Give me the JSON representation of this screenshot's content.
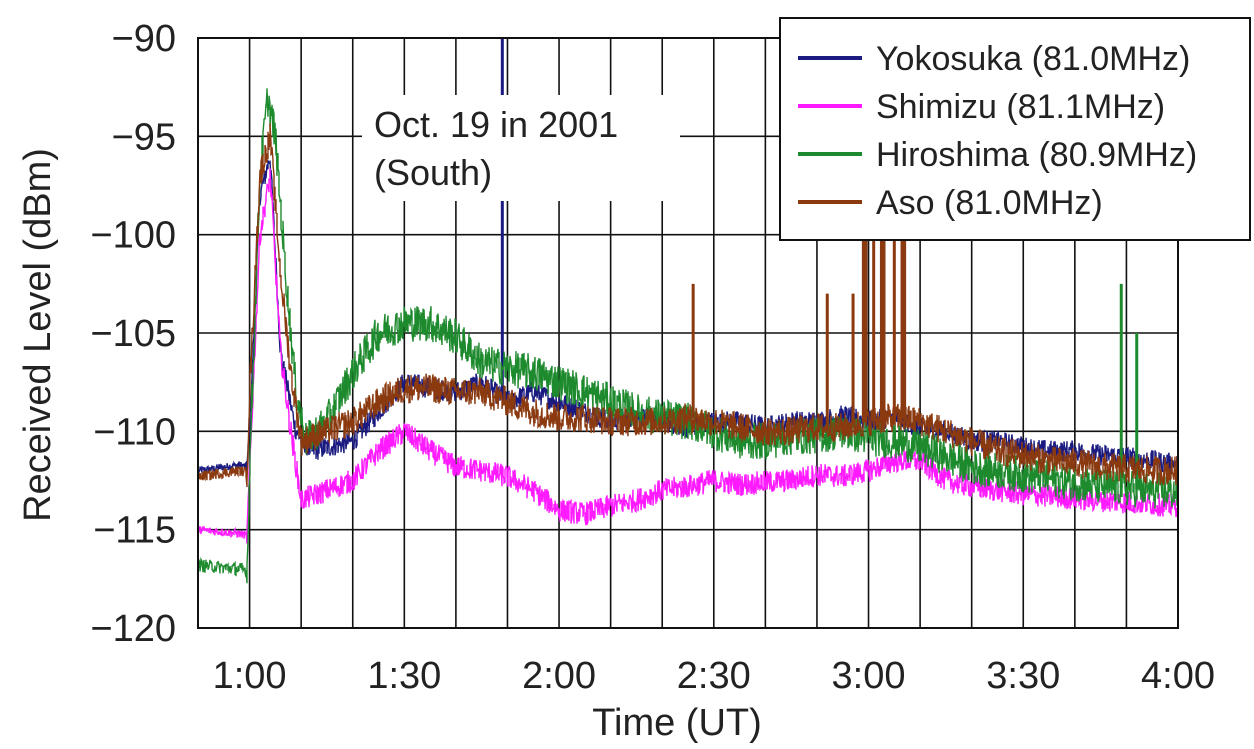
{
  "chart_data": {
    "type": "line",
    "title": "",
    "annotation": [
      "Oct. 19 in 2001",
      "(South)"
    ],
    "xlabel": "Time (UT)",
    "ylabel": "Received Level (dBm)",
    "xlim_minutes": [
      50,
      240
    ],
    "ylim": [
      -120,
      -90
    ],
    "x_ticks": [
      {
        "label": "1:00",
        "minutes": 60
      },
      {
        "label": "1:30",
        "minutes": 90
      },
      {
        "label": "2:00",
        "minutes": 120
      },
      {
        "label": "2:30",
        "minutes": 150
      },
      {
        "label": "3:00",
        "minutes": 180
      },
      {
        "label": "3:30",
        "minutes": 210
      },
      {
        "label": "4:00",
        "minutes": 240
      }
    ],
    "y_ticks": [
      {
        "label": "−90",
        "value": -90
      },
      {
        "label": "−95",
        "value": -95
      },
      {
        "label": "−100",
        "value": -100
      },
      {
        "label": "−105",
        "value": -105
      },
      {
        "label": "−110",
        "value": -110
      },
      {
        "label": "−115",
        "value": -115
      },
      {
        "label": "−120",
        "value": -120
      }
    ],
    "grid": true,
    "legend_position": "top-right",
    "series": [
      {
        "name": "Yokosuka (81.0MHz)",
        "color": "#1a1a80",
        "points": [
          [
            50,
            -112
          ],
          [
            58,
            -111.7
          ],
          [
            59.5,
            -111.8
          ],
          [
            60,
            -110
          ],
          [
            62,
            -98
          ],
          [
            64,
            -96
          ],
          [
            66,
            -106
          ],
          [
            69,
            -110
          ],
          [
            72,
            -111
          ],
          [
            80,
            -110.5
          ],
          [
            85,
            -109
          ],
          [
            90,
            -107.5
          ],
          [
            95,
            -107.8
          ],
          [
            100,
            -108
          ],
          [
            105,
            -107.5
          ],
          [
            110,
            -108.5
          ],
          [
            115,
            -108
          ],
          [
            120,
            -108.5
          ],
          [
            125,
            -109
          ],
          [
            130,
            -109.5
          ],
          [
            135,
            -109.2
          ],
          [
            140,
            -109.5
          ],
          [
            145,
            -109.8
          ],
          [
            150,
            -109.5
          ],
          [
            155,
            -109.5
          ],
          [
            160,
            -109.8
          ],
          [
            165,
            -109.5
          ],
          [
            170,
            -109.5
          ],
          [
            175,
            -109.2
          ],
          [
            180,
            -109.5
          ],
          [
            185,
            -109.3
          ],
          [
            190,
            -109.8
          ],
          [
            195,
            -110
          ],
          [
            200,
            -110.5
          ],
          [
            205,
            -110.5
          ],
          [
            210,
            -110.8
          ],
          [
            215,
            -111
          ],
          [
            220,
            -111
          ],
          [
            225,
            -111.2
          ],
          [
            230,
            -111.3
          ],
          [
            235,
            -111.5
          ],
          [
            240,
            -111.7
          ]
        ],
        "spikes": [
          [
            109,
            -90
          ]
        ]
      },
      {
        "name": "Shimizu (81.1MHz)",
        "color": "#ff1aff",
        "points": [
          [
            50,
            -115
          ],
          [
            58,
            -115.2
          ],
          [
            59.5,
            -115.3
          ],
          [
            60,
            -112
          ],
          [
            62,
            -100
          ],
          [
            64,
            -97
          ],
          [
            66,
            -106
          ],
          [
            68,
            -110
          ],
          [
            70,
            -113.5
          ],
          [
            75,
            -113
          ],
          [
            80,
            -112.5
          ],
          [
            85,
            -111
          ],
          [
            90,
            -110
          ],
          [
            95,
            -111
          ],
          [
            100,
            -111.8
          ],
          [
            105,
            -112
          ],
          [
            110,
            -112.3
          ],
          [
            115,
            -113
          ],
          [
            120,
            -114
          ],
          [
            125,
            -114.2
          ],
          [
            130,
            -113.8
          ],
          [
            135,
            -113.5
          ],
          [
            140,
            -113
          ],
          [
            145,
            -112.8
          ],
          [
            150,
            -112.5
          ],
          [
            155,
            -112.7
          ],
          [
            160,
            -112.6
          ],
          [
            165,
            -112.5
          ],
          [
            170,
            -112.2
          ],
          [
            175,
            -112.3
          ],
          [
            180,
            -112
          ],
          [
            185,
            -111.5
          ],
          [
            190,
            -111.5
          ],
          [
            195,
            -112.5
          ],
          [
            200,
            -112.8
          ],
          [
            205,
            -113
          ],
          [
            210,
            -113.2
          ],
          [
            215,
            -113.3
          ],
          [
            220,
            -113.4
          ],
          [
            225,
            -113.5
          ],
          [
            230,
            -113.6
          ],
          [
            235,
            -113.7
          ],
          [
            240,
            -113.8
          ]
        ],
        "spikes": []
      },
      {
        "name": "Hiroshima (80.9MHz)",
        "color": "#1e8a2e",
        "points": [
          [
            50,
            -116.8
          ],
          [
            58,
            -117
          ],
          [
            59.5,
            -117.1
          ],
          [
            60,
            -112
          ],
          [
            62,
            -97
          ],
          [
            63.5,
            -93
          ],
          [
            65,
            -95
          ],
          [
            67,
            -102
          ],
          [
            69,
            -108
          ],
          [
            71,
            -110.5
          ],
          [
            75,
            -109.5
          ],
          [
            80,
            -107
          ],
          [
            85,
            -105
          ],
          [
            90,
            -104.5
          ],
          [
            95,
            -104.5
          ],
          [
            100,
            -105.2
          ],
          [
            105,
            -106.5
          ],
          [
            110,
            -106.8
          ],
          [
            115,
            -107
          ],
          [
            120,
            -107.5
          ],
          [
            125,
            -108
          ],
          [
            130,
            -108.5
          ],
          [
            135,
            -109
          ],
          [
            140,
            -109.3
          ],
          [
            145,
            -109.5
          ],
          [
            150,
            -110
          ],
          [
            155,
            -110.5
          ],
          [
            160,
            -110.5
          ],
          [
            165,
            -110.3
          ],
          [
            170,
            -110.2
          ],
          [
            175,
            -110
          ],
          [
            180,
            -110.3
          ],
          [
            185,
            -110.5
          ],
          [
            190,
            -110.8
          ],
          [
            195,
            -111.3
          ],
          [
            200,
            -111.8
          ],
          [
            205,
            -112
          ],
          [
            210,
            -112.2
          ],
          [
            215,
            -112.4
          ],
          [
            220,
            -112.6
          ],
          [
            225,
            -112.8
          ],
          [
            230,
            -112.9
          ],
          [
            235,
            -113
          ],
          [
            240,
            -113.1
          ]
        ],
        "spikes": [
          [
            229,
            -102.5
          ],
          [
            232,
            -105
          ]
        ]
      },
      {
        "name": "Aso (81.0MHz)",
        "color": "#8b3a10",
        "points": [
          [
            50,
            -112.3
          ],
          [
            58,
            -112
          ],
          [
            59.5,
            -112.1
          ],
          [
            60,
            -108
          ],
          [
            62,
            -97
          ],
          [
            64,
            -95
          ],
          [
            66,
            -102
          ],
          [
            68,
            -107
          ],
          [
            70,
            -110.5
          ],
          [
            75,
            -110
          ],
          [
            80,
            -109.5
          ],
          [
            85,
            -108.5
          ],
          [
            90,
            -107.8
          ],
          [
            95,
            -107.8
          ],
          [
            100,
            -108
          ],
          [
            105,
            -108
          ],
          [
            110,
            -108.5
          ],
          [
            115,
            -109
          ],
          [
            120,
            -109.3
          ],
          [
            125,
            -109.3
          ],
          [
            130,
            -109.5
          ],
          [
            135,
            -109.5
          ],
          [
            140,
            -109.5
          ],
          [
            145,
            -109.3
          ],
          [
            150,
            -109.5
          ],
          [
            155,
            -109.8
          ],
          [
            160,
            -110
          ],
          [
            165,
            -110
          ],
          [
            170,
            -109.8
          ],
          [
            175,
            -109.8
          ],
          [
            180,
            -109.5
          ],
          [
            185,
            -109.3
          ],
          [
            190,
            -109.5
          ],
          [
            195,
            -110
          ],
          [
            200,
            -110.5
          ],
          [
            205,
            -111
          ],
          [
            210,
            -111.2
          ],
          [
            215,
            -111.5
          ],
          [
            220,
            -111.6
          ],
          [
            225,
            -111.8
          ],
          [
            230,
            -111.9
          ],
          [
            235,
            -112
          ],
          [
            240,
            -112
          ]
        ],
        "spikes": [
          [
            146,
            -102.5
          ],
          [
            172,
            -103
          ],
          [
            177,
            -103
          ],
          [
            179,
            -97
          ],
          [
            181,
            -97
          ],
          [
            183,
            -97
          ],
          [
            185,
            -97
          ],
          [
            187,
            -97
          ],
          [
            179.5,
            -90.5
          ],
          [
            182.5,
            -90.5
          ],
          [
            186.5,
            -90.5
          ]
        ]
      }
    ]
  }
}
